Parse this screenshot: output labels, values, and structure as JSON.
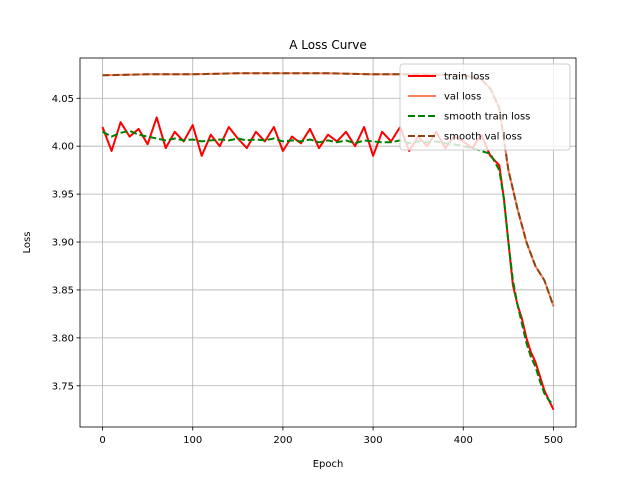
{
  "chart_data": {
    "type": "line",
    "title": "A Loss Curve",
    "xlabel": "Epoch",
    "ylabel": "Loss",
    "xlim": [
      -25,
      525
    ],
    "ylim": [
      3.707,
      4.092
    ],
    "xticks": [
      0,
      100,
      200,
      300,
      400,
      500
    ],
    "yticks": [
      3.75,
      3.8,
      3.85,
      3.9,
      3.95,
      4.0,
      4.05
    ],
    "ytick_labels": [
      "3.75",
      "3.80",
      "3.85",
      "3.90",
      "3.95",
      "4.00",
      "4.05"
    ],
    "grid": true,
    "legend_position": "top-right",
    "series": [
      {
        "name": "train loss",
        "color": "#ff0000",
        "style": "solid",
        "x": [
          0,
          10,
          20,
          30,
          40,
          50,
          60,
          70,
          80,
          90,
          100,
          110,
          120,
          130,
          140,
          150,
          160,
          170,
          180,
          190,
          200,
          210,
          220,
          230,
          240,
          250,
          260,
          270,
          280,
          290,
          300,
          310,
          320,
          330,
          340,
          350,
          360,
          370,
          380,
          390,
          400,
          410,
          420,
          430,
          440,
          445,
          450,
          455,
          460,
          465,
          470,
          475,
          480,
          485,
          490,
          495,
          500
        ],
        "y": [
          4.02,
          3.995,
          4.025,
          4.01,
          4.018,
          4.002,
          4.03,
          3.998,
          4.015,
          4.005,
          4.022,
          3.99,
          4.012,
          4.0,
          4.02,
          4.008,
          3.998,
          4.015,
          4.005,
          4.02,
          3.995,
          4.01,
          4.003,
          4.018,
          3.998,
          4.012,
          4.005,
          4.015,
          4.0,
          4.02,
          3.99,
          4.015,
          4.005,
          4.02,
          3.995,
          4.01,
          4.0,
          4.015,
          3.998,
          4.01,
          4.005,
          3.998,
          4.012,
          3.99,
          3.98,
          3.945,
          3.9,
          3.855,
          3.835,
          3.82,
          3.8,
          3.785,
          3.775,
          3.76,
          3.745,
          3.735,
          3.725
        ]
      },
      {
        "name": "val loss",
        "color": "#fa8060",
        "style": "solid",
        "x": [
          0,
          50,
          100,
          150,
          200,
          250,
          300,
          350,
          400,
          420,
          430,
          440,
          450,
          460,
          470,
          480,
          490,
          500
        ],
        "y": [
          4.074,
          4.075,
          4.075,
          4.076,
          4.076,
          4.076,
          4.075,
          4.075,
          4.074,
          4.07,
          4.06,
          4.04,
          3.975,
          3.935,
          3.9,
          3.875,
          3.86,
          3.833
        ]
      },
      {
        "name": "smooth train loss",
        "color": "#008000",
        "style": "dashed",
        "x": [
          0,
          10,
          20,
          30,
          40,
          50,
          60,
          70,
          80,
          90,
          100,
          110,
          120,
          130,
          140,
          150,
          160,
          170,
          180,
          190,
          200,
          210,
          220,
          230,
          240,
          250,
          260,
          270,
          280,
          290,
          300,
          310,
          320,
          330,
          340,
          350,
          360,
          370,
          380,
          390,
          400,
          410,
          420,
          430,
          440,
          445,
          450,
          455,
          460,
          465,
          470,
          475,
          480,
          485,
          490,
          495,
          500
        ],
        "y": [
          4.015,
          4.01,
          4.014,
          4.016,
          4.012,
          4.01,
          4.008,
          4.006,
          4.008,
          4.006,
          4.007,
          4.005,
          4.006,
          4.007,
          4.006,
          4.008,
          4.006,
          4.007,
          4.006,
          4.008,
          4.005,
          4.006,
          4.005,
          4.007,
          4.004,
          4.006,
          4.004,
          4.006,
          4.003,
          4.006,
          4.005,
          4.004,
          4.004,
          4.006,
          4.003,
          4.005,
          4.004,
          4.005,
          4.003,
          4.002,
          4.0,
          3.998,
          3.995,
          3.992,
          3.975,
          3.945,
          3.9,
          3.86,
          3.835,
          3.815,
          3.795,
          3.78,
          3.77,
          3.755,
          3.742,
          3.735,
          3.73
        ]
      },
      {
        "name": "smooth val loss",
        "color": "#8b4513",
        "style": "dashed",
        "x": [
          0,
          50,
          100,
          150,
          200,
          250,
          300,
          350,
          400,
          420,
          430,
          440,
          450,
          460,
          470,
          480,
          490,
          500
        ],
        "y": [
          4.074,
          4.075,
          4.075,
          4.076,
          4.076,
          4.076,
          4.075,
          4.075,
          4.074,
          4.07,
          4.06,
          4.04,
          3.975,
          3.935,
          3.9,
          3.875,
          3.86,
          3.833
        ]
      }
    ]
  }
}
